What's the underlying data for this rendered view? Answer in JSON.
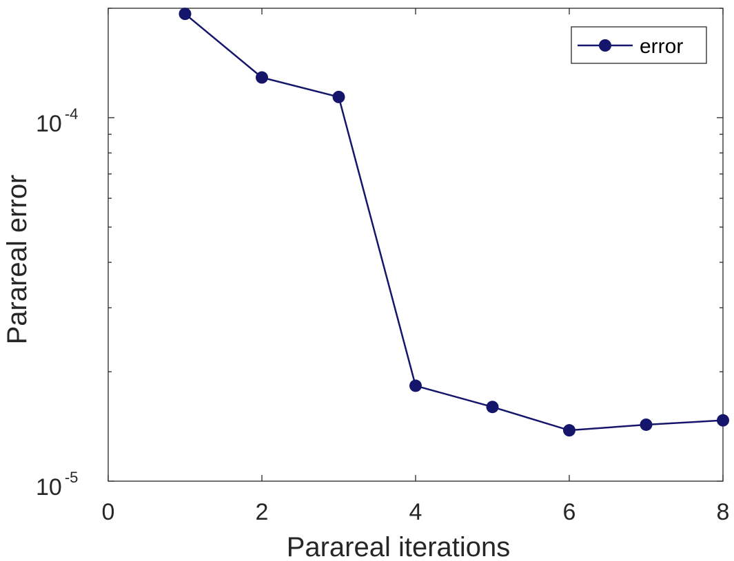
{
  "chart_data": {
    "type": "line",
    "xlabel": "Parareal iterations",
    "ylabel": "Parareal error",
    "xlim": [
      0,
      8
    ],
    "ylim": [
      1e-05,
      0.0002
    ],
    "yscale": "log",
    "xticks": [
      0,
      2,
      4,
      6,
      8
    ],
    "xtick_labels": [
      "0",
      "2",
      "4",
      "6",
      "8"
    ],
    "yticks": [
      1e-05,
      0.0001
    ],
    "ytick_labels": [
      {
        "base": "10",
        "exp": "-5"
      },
      {
        "base": "10",
        "exp": "-4"
      }
    ],
    "grid": false,
    "legend_position": "top-right",
    "series": [
      {
        "name": "error",
        "color": "#15156b",
        "marker": "circle",
        "x": [
          1,
          2,
          3,
          4,
          5,
          6,
          7,
          8
        ],
        "y": [
          0.000193,
          0.000129,
          0.000114,
          1.83e-05,
          1.6e-05,
          1.38e-05,
          1.43e-05,
          1.47e-05
        ]
      }
    ]
  }
}
